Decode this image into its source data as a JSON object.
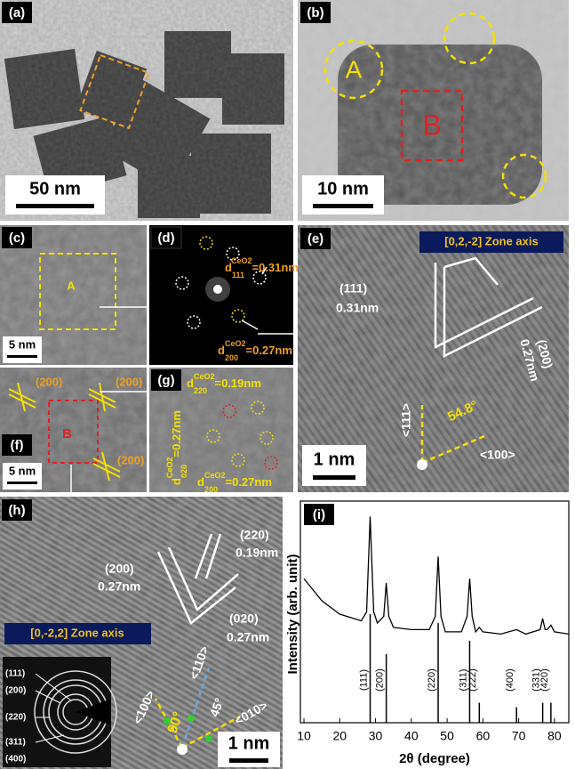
{
  "panels": {
    "a": {
      "label": "(a)",
      "scale": "50 nm"
    },
    "b": {
      "label": "(b)",
      "regions": [
        "A",
        "B"
      ],
      "scale": "10 nm"
    },
    "c": {
      "label": "(c)",
      "region": "A",
      "scale": "5 nm"
    },
    "d": {
      "label": "(d)",
      "d111": {
        "symbol": "d",
        "sub": "111",
        "sup": "CeO2",
        "value": "=0.31nm"
      },
      "d200": {
        "symbol": "d",
        "sub": "200",
        "sup": "CeO2",
        "value": "=0.27nm"
      }
    },
    "e": {
      "label": "(e)",
      "zone": "[0,2,-2] Zone axis",
      "plane1": "(111)",
      "spacing1": "0.31nm",
      "plane2": "(200)",
      "spacing2": "0.27nm",
      "dir1": "<111>",
      "angle": "54.8°",
      "dir2": "<100>",
      "scale": "1 nm"
    },
    "f": {
      "label": "(f)",
      "planes": [
        "(200)",
        "(200)",
        "(200)"
      ],
      "region": "B",
      "scale": "5 nm"
    },
    "g": {
      "label": "(g)",
      "d220": {
        "symbol": "d",
        "sub": "220",
        "sup": "CeO2",
        "value": "=0.19nm"
      },
      "d020": {
        "symbol": "d",
        "sub": "020",
        "sup": "CeO2",
        "value": "=0.27nm"
      },
      "d200": {
        "symbol": "d",
        "sub": "200",
        "sup": "CeO2",
        "value": "=0.27nm"
      }
    },
    "h": {
      "label": "(h)",
      "plane1": "(220)",
      "spacing1": "0.19nm",
      "plane2": "(200)",
      "spacing2": "0.27nm",
      "plane3": "(020)",
      "spacing3": "0.27nm",
      "zone": "[0,-2,2] Zone axis",
      "dir1": "<100>",
      "dir2": "<110>",
      "angle1": "90°",
      "angle2": "45°",
      "dir3": "<010>",
      "scale": "1 nm",
      "inset_rings": [
        "(111)",
        "(200)",
        "(220)",
        "(311)",
        "(400)"
      ]
    }
  },
  "chart_data": {
    "type": "line",
    "panel_label": "(i)",
    "xlabel": "2θ (degree)",
    "ylabel": "Intensity (arb. unit)",
    "xlim": [
      9,
      84
    ],
    "ylim": [
      0,
      100
    ],
    "xticks": [
      10,
      20,
      30,
      40,
      50,
      60,
      70,
      80
    ],
    "series": [
      {
        "color": "#000000",
        "x": [
          10,
          15,
          20,
          24,
          26,
          27.5,
          28.2,
          28.5,
          28.8,
          29.5,
          30.5,
          32.3,
          33,
          33.7,
          35,
          40,
          45,
          46.7,
          47.5,
          48.3,
          49.5,
          54,
          55.6,
          56.3,
          57,
          58,
          59,
          60,
          65,
          69.4,
          72,
          76,
          76.7,
          77.4,
          78,
          79,
          80,
          84
        ],
        "values": [
          65,
          55,
          49,
          47,
          46,
          50,
          80,
          93,
          80,
          50,
          45,
          48,
          63,
          48,
          43,
          42,
          42,
          48,
          75,
          48,
          41,
          41,
          48,
          65,
          48,
          41,
          43,
          41,
          40,
          42,
          40,
          42,
          47,
          42,
          42,
          44,
          41,
          40
        ]
      }
    ],
    "reference": {
      "color": "#000000",
      "x": [
        28.5,
        33,
        47.5,
        56.3,
        59,
        69.4,
        76.7,
        79
      ],
      "values": [
        49,
        31,
        45,
        37,
        9,
        7,
        9,
        9
      ],
      "labels": [
        "(111)",
        "(200)",
        "(220)",
        "(311)",
        "(222)",
        "(400)",
        "(331)",
        "(420)"
      ]
    }
  }
}
